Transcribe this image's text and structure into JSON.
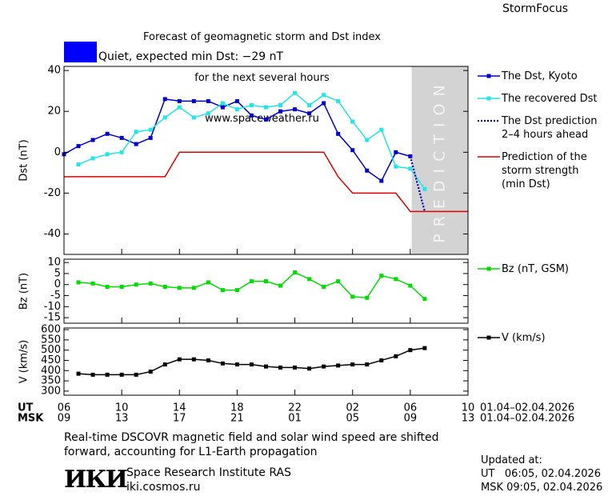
{
  "header": {
    "title": [
      "Forecast of geomagnetic storm and Dst index",
      "for the next several hours",
      "www.spaceweather.ru"
    ],
    "brand": "StormFocus",
    "status": "Quiet, expected min Dst: −29 nT",
    "status_color": "#0000ff"
  },
  "chart_data": [
    {
      "type": "line",
      "ylabel": "Dst (nT)",
      "xlim": [
        0,
        28
      ],
      "ylim": [
        -50,
        42
      ],
      "yticks": [
        -40,
        -20,
        0,
        20,
        40
      ],
      "shade": {
        "x": [
          24.1,
          28
        ],
        "label": "PREDICTION",
        "color": "#d3d3d3"
      },
      "series": [
        {
          "name": "The Dst, Kyoto",
          "color": "#0000cc",
          "marker": "square",
          "dash": "solid",
          "x": [
            0,
            1,
            2,
            3,
            4,
            5,
            6,
            7,
            8,
            9,
            10,
            11,
            12,
            13,
            14,
            15,
            16,
            17,
            18,
            19,
            20,
            21,
            22,
            23,
            24
          ],
          "values": [
            -1,
            3,
            6,
            9,
            7,
            4,
            7,
            26,
            25,
            25,
            25,
            22,
            25,
            18,
            16,
            20,
            21,
            19,
            24,
            9,
            1,
            -9,
            -14,
            0,
            -2
          ]
        },
        {
          "name": "The recovered Dst",
          "color": "#22e6e6",
          "marker": "square",
          "dash": "solid",
          "x": [
            1,
            2,
            3,
            4,
            5,
            6,
            7,
            8,
            9,
            10,
            11,
            12,
            13,
            14,
            15,
            16,
            17,
            18,
            19,
            20,
            21,
            22,
            23,
            24,
            25
          ],
          "values": [
            -6,
            -3,
            -1,
            0,
            10,
            11,
            17,
            22,
            17,
            19,
            24,
            21,
            23,
            22,
            23,
            29,
            23,
            28,
            25,
            15,
            6,
            11,
            -7,
            -8,
            -18
          ]
        },
        {
          "name": "The Dst prediction\n2–4 hours ahead",
          "color": "#0000aa",
          "marker": "none",
          "dash": "dotted",
          "x": [
            24,
            25
          ],
          "values": [
            -2,
            -29
          ]
        },
        {
          "name": "Prediction of the\nstorm strength\n(min Dst)",
          "color": "#dd0000",
          "marker": "none",
          "dash": "solid",
          "x": [
            0,
            7,
            8,
            18,
            19,
            20,
            23,
            24,
            28
          ],
          "values": [
            -12,
            -12,
            0,
            0,
            -12,
            -20,
            -20,
            -29,
            -29
          ]
        }
      ]
    },
    {
      "type": "line",
      "ylabel": "Bz (nT)",
      "xlim": [
        0,
        28
      ],
      "ylim": [
        -17.5,
        11.5
      ],
      "yticks": [
        -15,
        -10,
        -5,
        0,
        5,
        10
      ],
      "series": [
        {
          "name": "Bz (nT, GSM)",
          "color": "#00dd00",
          "marker": "square",
          "dash": "solid",
          "x": [
            1,
            2,
            3,
            4,
            5,
            6,
            7,
            8,
            9,
            10,
            11,
            12,
            13,
            14,
            15,
            16,
            17,
            18,
            19,
            20,
            21,
            22,
            23,
            24,
            25
          ],
          "values": [
            1,
            0.5,
            -1,
            -1,
            0,
            0.5,
            -1,
            -1.5,
            -1.5,
            1,
            -2.5,
            -2.5,
            1.5,
            1.5,
            -0.5,
            5.5,
            2.5,
            -1,
            1.5,
            -5.5,
            -6,
            4,
            2.5,
            -0.5,
            -6.5
          ]
        }
      ]
    },
    {
      "type": "line",
      "ylabel": "V (km/s)",
      "xlim": [
        0,
        28
      ],
      "ylim": [
        280,
        608
      ],
      "yticks": [
        300,
        350,
        400,
        450,
        500,
        550,
        600
      ],
      "xticks": [
        {
          "value": 0,
          "label": "06"
        },
        {
          "value": 4,
          "label": "10"
        },
        {
          "value": 8,
          "label": "14"
        },
        {
          "value": 12,
          "label": "18"
        },
        {
          "value": 16,
          "label": "22"
        },
        {
          "value": 20,
          "label": "02"
        },
        {
          "value": 24,
          "label": "06"
        },
        {
          "value": 28,
          "label": "10"
        }
      ],
      "xticks_msk": [
        {
          "value": 0,
          "label": "09"
        },
        {
          "value": 4,
          "label": "13"
        },
        {
          "value": 8,
          "label": "17"
        },
        {
          "value": 12,
          "label": "21"
        },
        {
          "value": 16,
          "label": "01"
        },
        {
          "value": 20,
          "label": "05"
        },
        {
          "value": 24,
          "label": "09"
        },
        {
          "value": 28,
          "label": "13"
        }
      ],
      "x_rows": [
        {
          "label": "UT",
          "date": "01.04–02.04.2026"
        },
        {
          "label": "MSK",
          "date": "01.04–02.04.2026"
        }
      ],
      "series": [
        {
          "name": "V (km/s)",
          "color": "#000000",
          "marker": "square",
          "dash": "solid",
          "x": [
            1,
            2,
            3,
            4,
            5,
            6,
            7,
            8,
            9,
            10,
            11,
            12,
            13,
            14,
            15,
            16,
            17,
            18,
            19,
            20,
            21,
            22,
            23,
            24,
            25
          ],
          "values": [
            385,
            380,
            380,
            380,
            380,
            395,
            430,
            455,
            455,
            450,
            435,
            430,
            430,
            420,
            415,
            415,
            410,
            420,
            425,
            430,
            430,
            450,
            470,
            500,
            510
          ]
        }
      ]
    }
  ],
  "footer": {
    "note": "Real-time DSCOVR magnetic field and solar wind speed are shifted\nforward, accounting for L1-Earth propagation",
    "logo": "ИКИ",
    "institute": "Space Research Institute RAS",
    "url": "iki.cosmos.ru",
    "updated_label": "Updated at:",
    "updated_ut": "UT   06:05, 02.04.2026",
    "updated_msk": "MSK 09:05, 02.04.2026"
  }
}
